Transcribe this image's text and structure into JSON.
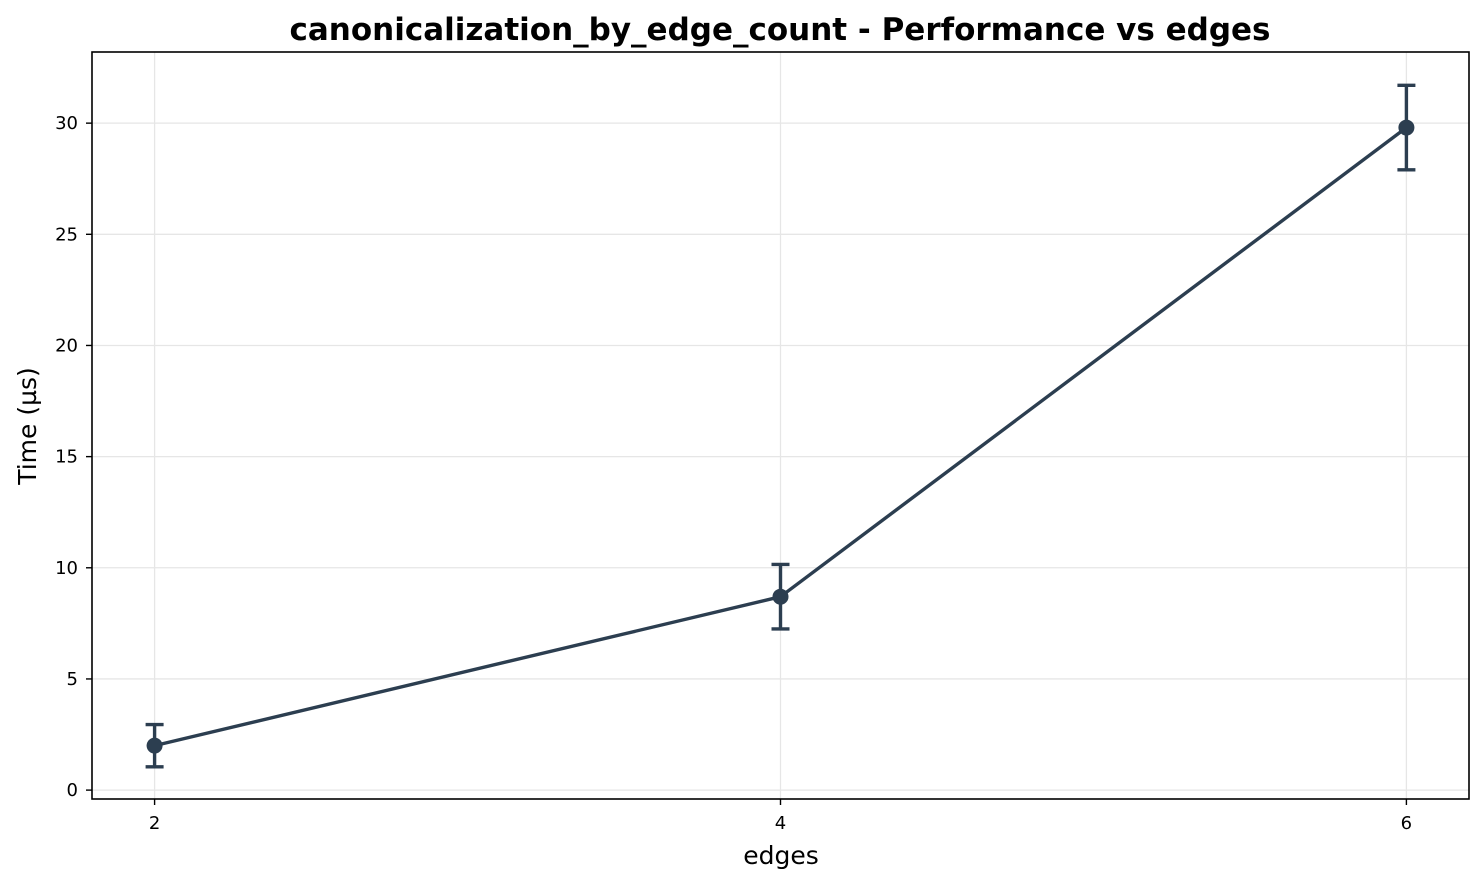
{
  "chart_data": {
    "type": "line",
    "title": "canonicalization_by_edge_count - Performance vs edges",
    "xlabel": "edges",
    "ylabel": "Time (µs)",
    "x": [
      2,
      4,
      6
    ],
    "x_tick_labels": [
      "2",
      "4",
      "6"
    ],
    "xlim": [
      1.8,
      6.2
    ],
    "ylim": [
      -0.4,
      33.2
    ],
    "y_ticks": [
      0,
      5,
      10,
      15,
      20,
      25,
      30
    ],
    "y_tick_labels": [
      "0",
      "5",
      "10",
      "15",
      "20",
      "25",
      "30"
    ],
    "grid": true,
    "legend": "none",
    "series": [
      {
        "values": [
          2.0,
          8.7,
          29.8
        ],
        "error": [
          0.95,
          1.45,
          1.9
        ],
        "color": "#2c3e50"
      }
    ]
  }
}
